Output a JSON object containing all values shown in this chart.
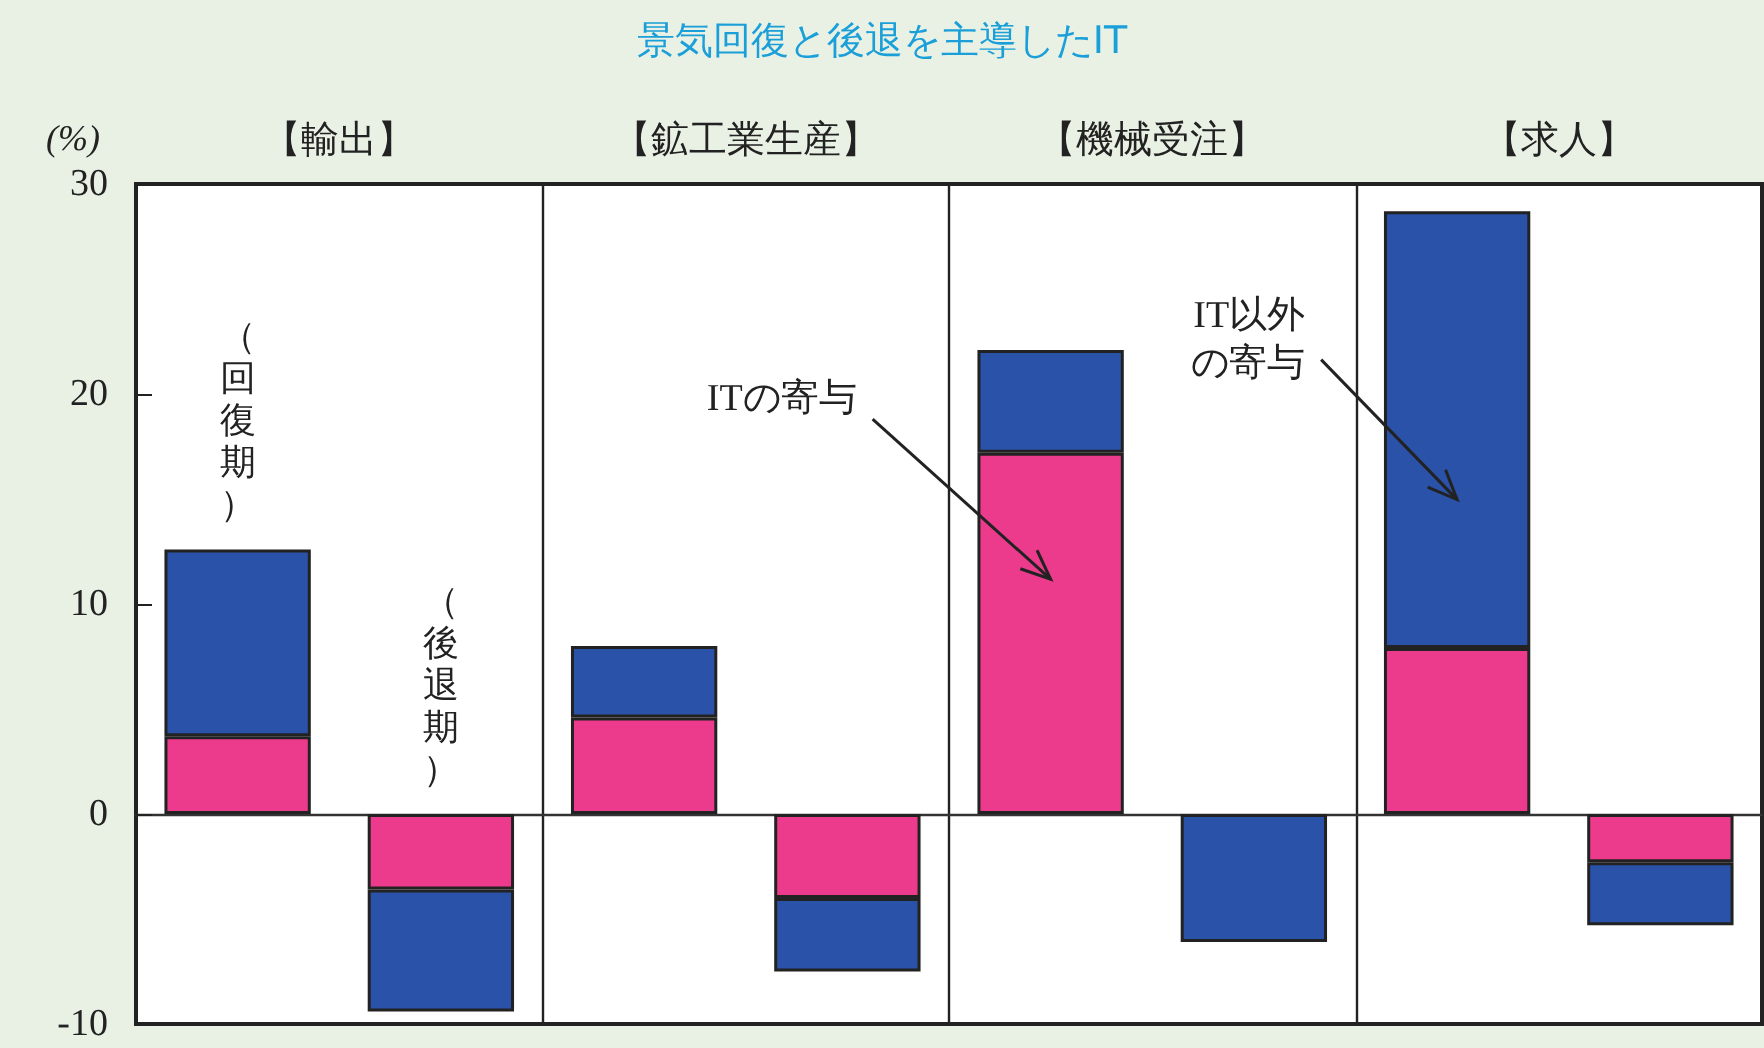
{
  "chart_data": {
    "type": "bar",
    "title": "景気回復と後退を主導したIT",
    "ylabel": "(%)",
    "categories": [
      "【輸出】",
      null,
      "【鉱工業生産】",
      null,
      "【機械受注】",
      null,
      "【求人】",
      null
    ],
    "stacked": true,
    "series": [
      {
        "name": "ITの寄与",
        "color": "#ec3b8c",
        "values": [
          3.7,
          -3.6,
          4.6,
          -4.0,
          17.2,
          null,
          7.9,
          -2.3
        ]
      },
      {
        "name": "IT以外の寄与",
        "color": "#2a52a8",
        "values": [
          8.9,
          -5.8,
          3.4,
          -3.5,
          4.9,
          -6.1,
          20.8,
          -3.0
        ]
      }
    ],
    "annotations": [
      "（回復期）",
      "（後退期）"
    ],
    "ylim": [
      -10,
      30
    ],
    "yticks": [
      -10,
      0,
      10,
      20,
      30
    ],
    "grid": "x",
    "legend": false
  }
}
